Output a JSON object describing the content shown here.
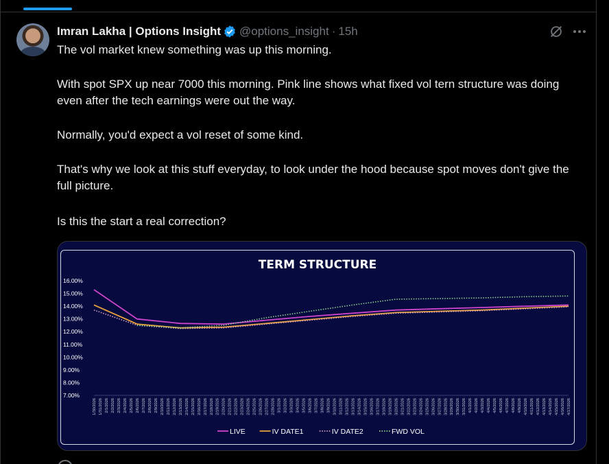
{
  "tweet": {
    "author_name": "Imran Lakha | Options Insight",
    "handle": "@options_insight",
    "separator": "·",
    "time": "15h",
    "paragraphs": [
      "The vol market knew something was up this morning.",
      "With spot SPX up near 7000 this morning.  Pink line shows what fixed vol tern structure was doing even after the tech earnings were out the way.",
      "Normally, you'd expect a vol reset of some kind.",
      "That's why we look at this stuff everyday, to look under the hood because spot moves don't give the full picture.",
      "Is this the start a real correction?"
    ],
    "icons": {
      "verified": "verified-badge-icon",
      "grok": "grok-icon",
      "more": "more-options-icon"
    }
  },
  "colors": {
    "accent": "#1d9bf0",
    "chart_bg": "#060a3e",
    "live": "#cc44cc",
    "iv_date1": "#e8a33a",
    "iv_date2": "#d8a0c8",
    "fwd_vol": "#8fd18f"
  },
  "chart_data": {
    "type": "line",
    "title": "TERM STRUCTURE",
    "xlabel": "",
    "ylabel": "",
    "ylim": [
      7,
      16
    ],
    "y_ticks": [
      "16.00%",
      "15.00%",
      "14.00%",
      "13.00%",
      "12.00%",
      "11.00%",
      "10.00%",
      "9.00%",
      "8.00%",
      "7.00%"
    ],
    "x": [
      "1/30/2026",
      "1/31/2026",
      "2/1/2026",
      "2/2/2026",
      "2/3/2026",
      "2/4/2026",
      "2/5/2026",
      "2/6/2026",
      "2/7/2026",
      "2/8/2026",
      "2/9/2026",
      "2/10/2026",
      "2/11/2026",
      "2/12/2026",
      "2/13/2026",
      "2/14/2026",
      "2/15/2026",
      "2/16/2026",
      "2/17/2026",
      "2/18/2026",
      "2/19/2026",
      "2/20/2026",
      "2/21/2026",
      "2/22/2026",
      "2/23/2026",
      "2/24/2026",
      "2/25/2026",
      "2/26/2026",
      "2/27/2026",
      "2/28/2026",
      "3/1/2026",
      "3/2/2026",
      "3/3/2026",
      "3/4/2026",
      "3/5/2026",
      "3/6/2026",
      "3/7/2026",
      "3/8/2026",
      "3/9/2026",
      "3/10/2026",
      "3/11/2026",
      "3/12/2026",
      "3/13/2026",
      "3/14/2026",
      "3/15/2026",
      "3/16/2026",
      "3/17/2026",
      "3/18/2026",
      "3/19/2026",
      "3/20/2026",
      "3/21/2026",
      "3/22/2026",
      "3/23/2026",
      "3/24/2026",
      "3/25/2026",
      "3/26/2026",
      "3/27/2026",
      "3/28/2026",
      "3/29/2026",
      "3/30/2026",
      "3/31/2026",
      "4/1/2026",
      "4/2/2026",
      "4/3/2026",
      "4/4/2026",
      "4/5/2026",
      "4/6/2026",
      "4/7/2026",
      "4/8/2026",
      "4/9/2026",
      "4/10/2026",
      "4/11/2026",
      "4/12/2026",
      "4/13/2026",
      "4/14/2026",
      "4/15/2026",
      "4/16/2026",
      "4/17/2026"
    ],
    "series": [
      {
        "name": "LIVE",
        "style": "solid",
        "points": [
          [
            "1/30/2026",
            15.3
          ],
          [
            "2/6/2026",
            13.0
          ],
          [
            "2/13/2026",
            12.65
          ],
          [
            "2/20/2026",
            12.6
          ],
          [
            "2/27/2026",
            12.9
          ],
          [
            "3/6/2026",
            13.2
          ],
          [
            "3/13/2026",
            13.45
          ],
          [
            "3/20/2026",
            13.7
          ],
          [
            "3/27/2026",
            13.8
          ],
          [
            "4/3/2026",
            13.9
          ],
          [
            "4/10/2026",
            14.0
          ],
          [
            "4/17/2026",
            14.1
          ]
        ]
      },
      {
        "name": "IV DATE1",
        "style": "solid",
        "points": [
          [
            "1/30/2026",
            14.1
          ],
          [
            "2/6/2026",
            12.6
          ],
          [
            "2/13/2026",
            12.3
          ],
          [
            "2/20/2026",
            12.35
          ],
          [
            "2/27/2026",
            12.65
          ],
          [
            "3/6/2026",
            12.95
          ],
          [
            "3/13/2026",
            13.25
          ],
          [
            "3/20/2026",
            13.5
          ],
          [
            "3/27/2026",
            13.6
          ],
          [
            "4/3/2026",
            13.7
          ],
          [
            "4/10/2026",
            13.85
          ],
          [
            "4/17/2026",
            14.0
          ]
        ]
      },
      {
        "name": "IV DATE2",
        "style": "dotted",
        "points": [
          [
            "1/30/2026",
            13.7
          ],
          [
            "2/6/2026",
            12.5
          ],
          [
            "2/13/2026",
            12.25
          ],
          [
            "2/20/2026",
            12.3
          ],
          [
            "2/27/2026",
            12.6
          ],
          [
            "3/6/2026",
            12.9
          ],
          [
            "3/13/2026",
            13.2
          ],
          [
            "3/20/2026",
            13.45
          ],
          [
            "3/27/2026",
            13.55
          ],
          [
            "4/3/2026",
            13.65
          ],
          [
            "4/10/2026",
            13.8
          ],
          [
            "4/17/2026",
            13.95
          ]
        ]
      },
      {
        "name": "FWD VOL",
        "style": "dotted",
        "points": [
          [
            "2/6/2026",
            12.5
          ],
          [
            "2/13/2026",
            12.3
          ],
          [
            "2/20/2026",
            12.5
          ],
          [
            "2/27/2026",
            13.1
          ],
          [
            "3/6/2026",
            13.6
          ],
          [
            "3/13/2026",
            14.1
          ],
          [
            "3/20/2026",
            14.55
          ],
          [
            "3/27/2026",
            14.6
          ],
          [
            "4/3/2026",
            14.65
          ],
          [
            "4/10/2026",
            14.75
          ],
          [
            "4/17/2026",
            14.8
          ]
        ]
      }
    ],
    "legend_placement": "bottom",
    "grid": false
  }
}
